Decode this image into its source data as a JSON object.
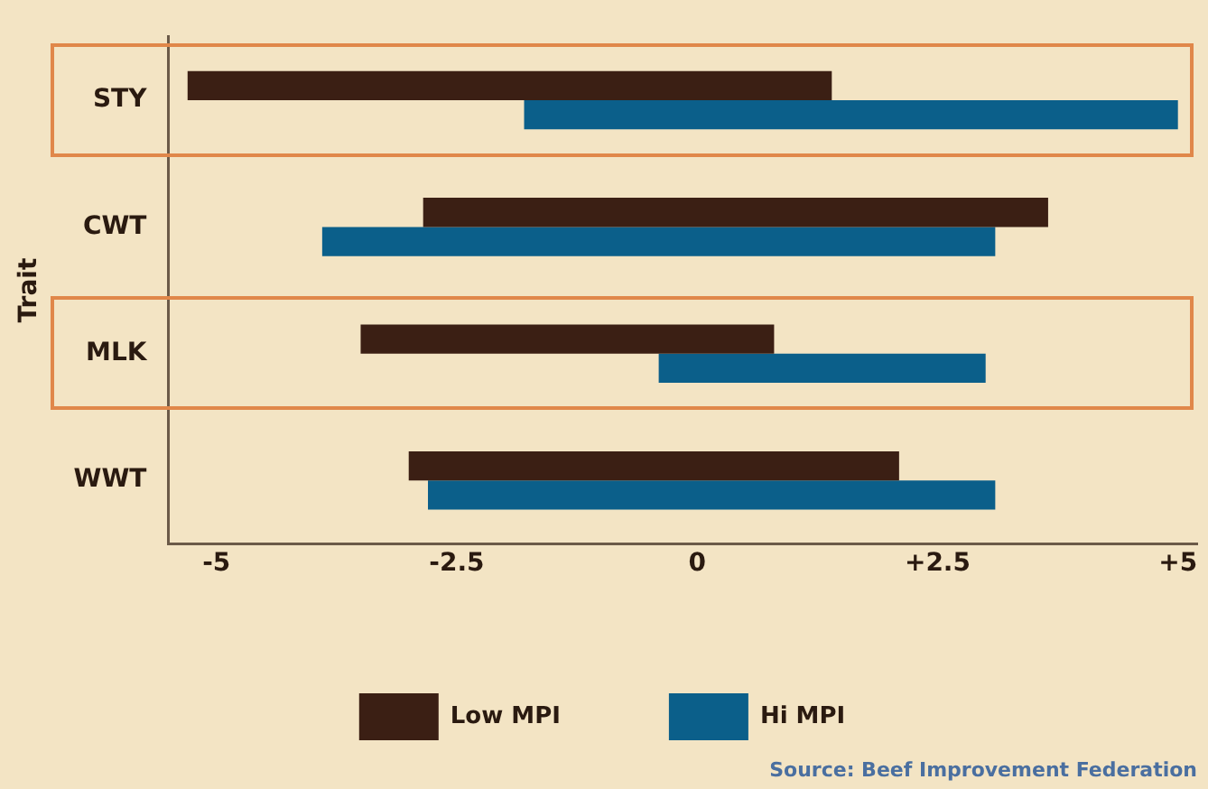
{
  "chart_data": {
    "type": "bar",
    "orientation": "horizontal",
    "ylabel": "Trait",
    "categories": [
      "STY",
      "CWT",
      "MLK",
      "WWT"
    ],
    "series": [
      {
        "name": "Low MPI",
        "color": "#3b1f14",
        "base": [
          -5.3,
          -2.85,
          -3.5,
          -3.0
        ],
        "values": [
          6.7,
          6.5,
          4.3,
          5.1
        ]
      },
      {
        "name": "Hi MPI",
        "color": "#0b5f8a",
        "base": [
          -1.8,
          -3.9,
          -0.4,
          -2.8
        ],
        "values": [
          6.8,
          7.0,
          3.4,
          5.9
        ]
      }
    ],
    "xlim": [
      -5.5,
      5.2
    ],
    "xticks": [
      -5,
      -2.5,
      0,
      {
        "value": 2.5,
        "label": "+2.5"
      },
      {
        "value": 5,
        "label": "+5"
      }
    ],
    "grid": false,
    "legend": "bottom",
    "annotations": [
      "Source: Beef Improvement Federation"
    ]
  }
}
